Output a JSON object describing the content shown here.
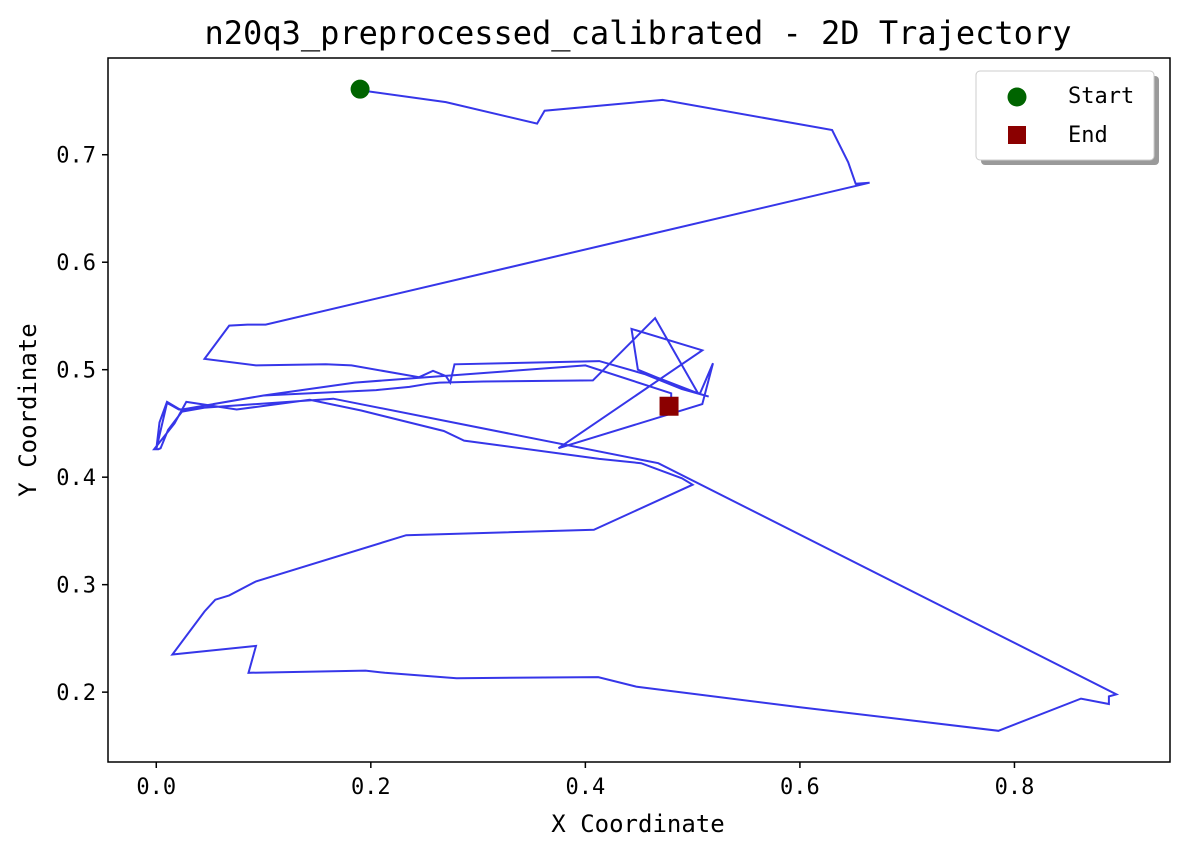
{
  "chart_data": {
    "type": "line",
    "title": "n20q3_preprocessed_calibrated - 2D Trajectory",
    "xlabel": "X Coordinate",
    "ylabel": "Y Coordinate",
    "xlim": [
      -0.045,
      0.945
    ],
    "ylim": [
      0.135,
      0.79
    ],
    "xticks": [
      0.0,
      0.2,
      0.4,
      0.6,
      0.8
    ],
    "xtick_labels": [
      "0.0",
      "0.2",
      "0.4",
      "0.6",
      "0.8"
    ],
    "yticks": [
      0.2,
      0.3,
      0.4,
      0.5,
      0.6,
      0.7
    ],
    "ytick_labels": [
      "0.2",
      "0.3",
      "0.4",
      "0.5",
      "0.6",
      "0.7"
    ],
    "grid": false,
    "legend_position": "top-right",
    "series": [
      {
        "name": "trajectory",
        "color": "#2b2be8",
        "x": [
          0.19,
          0.27,
          0.355,
          0.362,
          0.472,
          0.63,
          0.645,
          0.652,
          0.665,
          0.102,
          0.085,
          0.068,
          0.045,
          0.093,
          0.158,
          0.182,
          0.245,
          0.258,
          0.27,
          0.274,
          0.278,
          0.413,
          0.455,
          0.49,
          0.515,
          0.505,
          0.466,
          0.449,
          0.443,
          0.509,
          0.375,
          0.509,
          0.519,
          0.507,
          0.505,
          0.465,
          0.407,
          0.305,
          0.264,
          0.254,
          0.236,
          0.205,
          0.1,
          0.053,
          0.047,
          0.024,
          0.011,
          0.004,
          0.002,
          -0.002,
          0.017,
          0.028,
          0.075,
          0.143,
          0.191,
          0.268,
          0.287,
          0.413,
          0.452,
          0.49,
          0.5,
          0.408,
          0.233,
          0.093,
          0.068,
          0.055,
          0.045,
          0.015,
          0.093,
          0.086,
          0.195,
          0.213,
          0.28,
          0.412,
          0.448,
          0.6,
          0.785,
          0.862,
          0.888,
          0.888,
          0.895,
          0.468,
          0.165,
          0.021,
          0.014,
          0.01,
          0.0,
          0.003,
          0.01,
          0.022,
          0.024,
          0.1,
          0.185,
          0.4,
          0.48,
          0.48
        ],
        "y": [
          0.76,
          0.749,
          0.729,
          0.741,
          0.751,
          0.723,
          0.693,
          0.673,
          0.674,
          0.542,
          0.542,
          0.541,
          0.51,
          0.504,
          0.505,
          0.504,
          0.493,
          0.499,
          0.494,
          0.488,
          0.505,
          0.508,
          0.496,
          0.482,
          0.475,
          0.478,
          0.493,
          0.5,
          0.538,
          0.518,
          0.427,
          0.468,
          0.506,
          0.478,
          0.478,
          0.548,
          0.49,
          0.489,
          0.488,
          0.487,
          0.484,
          0.481,
          0.476,
          0.468,
          0.465,
          0.461,
          0.444,
          0.427,
          0.426,
          0.426,
          0.45,
          0.47,
          0.463,
          0.472,
          0.462,
          0.443,
          0.434,
          0.417,
          0.413,
          0.399,
          0.393,
          0.351,
          0.346,
          0.303,
          0.29,
          0.286,
          0.275,
          0.235,
          0.243,
          0.218,
          0.22,
          0.218,
          0.213,
          0.214,
          0.205,
          0.186,
          0.164,
          0.194,
          0.189,
          0.196,
          0.198,
          0.413,
          0.473,
          0.463,
          0.467,
          0.469,
          0.426,
          0.451,
          0.47,
          0.463,
          0.463,
          0.476,
          0.488,
          0.504,
          0.478,
          0.466
        ]
      }
    ],
    "markers": [
      {
        "name": "Start",
        "x": 0.19,
        "y": 0.761,
        "shape": "circle",
        "color": "#006400"
      },
      {
        "name": "End",
        "x": 0.478,
        "y": 0.466,
        "shape": "square",
        "color": "#8b0000"
      }
    ]
  }
}
